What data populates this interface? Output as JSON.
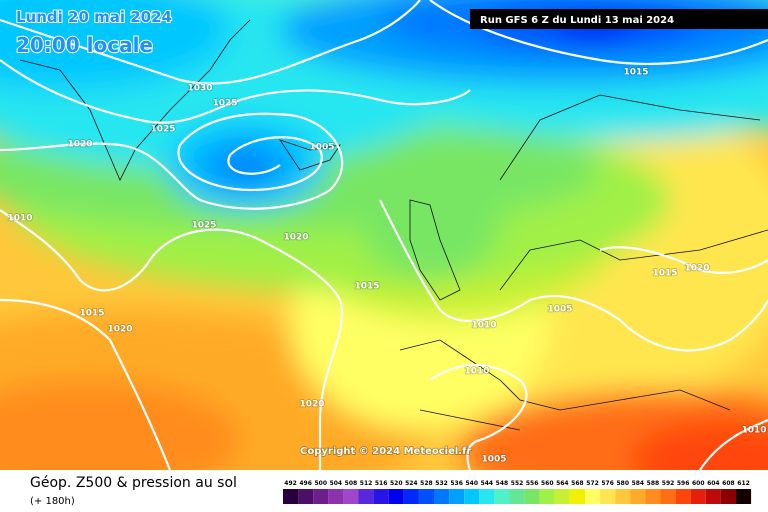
{
  "header": {
    "valid_date": "Lundi 20 mai 2024",
    "valid_time": "20:00 locale",
    "run": "Run GFS 6 Z du Lundi 13 mai 2024"
  },
  "isobar_labels": [
    "1030",
    "1025",
    "1025",
    "1020",
    "1005",
    "1010",
    "1025",
    "1020",
    "1015",
    "1015",
    "1020",
    "1010",
    "1005",
    "1015",
    "1020",
    "1010",
    "1020",
    "1005",
    "1010",
    "1015"
  ],
  "copyright": "Copyright © 2024 Meteociel.fr",
  "footer": {
    "title": "Géop. Z500 & pression au sol",
    "lead": "(+ 180h)"
  },
  "legend": {
    "values": [
      492,
      496,
      500,
      504,
      508,
      512,
      516,
      520,
      524,
      528,
      532,
      536,
      540,
      544,
      548,
      552,
      556,
      560,
      564,
      568,
      572,
      576,
      580,
      584,
      588,
      592,
      596,
      600,
      604,
      608,
      612
    ],
    "colors": [
      "#28003c",
      "#4b0f64",
      "#6e1e8c",
      "#8c32aa",
      "#a046c8",
      "#5a28dc",
      "#2814e6",
      "#0000f0",
      "#0028ff",
      "#0050ff",
      "#0078ff",
      "#00a0ff",
      "#00c8ff",
      "#28e6f0",
      "#50f0c8",
      "#64e696",
      "#78e664",
      "#a0f046",
      "#c8f032",
      "#f0f000",
      "#ffff64",
      "#ffe650",
      "#ffc83c",
      "#ffaa28",
      "#ff8c1e",
      "#ff6e14",
      "#ff460a",
      "#e61e0a",
      "#be0a0a",
      "#8c0000",
      "#140000"
    ]
  }
}
